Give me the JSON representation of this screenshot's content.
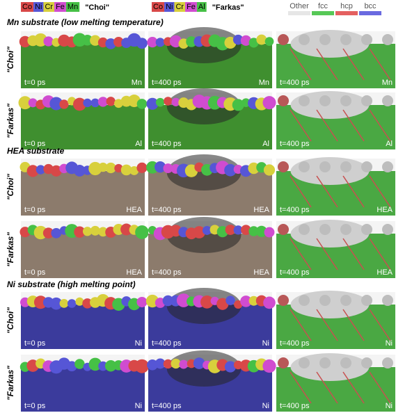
{
  "legend_choi": {
    "elements": [
      "Co",
      "Ni",
      "Cr",
      "Fe",
      "Mn"
    ],
    "label": "\"Choi\""
  },
  "legend_farkas": {
    "elements": [
      "Co",
      "Ni",
      "Cr",
      "Fe",
      "Al"
    ],
    "label": "\"Farkas\""
  },
  "legend_structure": [
    "Other",
    "fcc",
    "hcp",
    "bcc"
  ],
  "sections": [
    {
      "title": "Mn substrate (low melting temperature)",
      "rows": [
        {
          "label": "\"Choi\"",
          "panels": [
            {
              "time": "t=0 ps",
              "substrate": "Mn"
            },
            {
              "time": "t=400 ps",
              "substrate": "Mn"
            },
            {
              "time": "t=400 ps",
              "substrate": "Mn"
            }
          ]
        },
        {
          "label": "\"Farkas\"",
          "panels": [
            {
              "time": "t=0 ps",
              "substrate": "Al"
            },
            {
              "time": "t=400 ps",
              "substrate": "Al"
            },
            {
              "time": "t=400 ps",
              "substrate": "Al"
            }
          ]
        }
      ]
    },
    {
      "title": "HEA substrate",
      "rows": [
        {
          "label": "\"Choi\"",
          "panels": [
            {
              "time": "t=0 ps",
              "substrate": "HEA"
            },
            {
              "time": "t=400 ps",
              "substrate": "HEA"
            },
            {
              "time": "t=400 ps",
              "substrate": "HEA"
            }
          ]
        },
        {
          "label": "\"Farkas\"",
          "panels": [
            {
              "time": "t=0 ps",
              "substrate": "HEA"
            },
            {
              "time": "t=400 ps",
              "substrate": "HEA"
            },
            {
              "time": "t=400 ps",
              "substrate": "HEA"
            }
          ]
        }
      ]
    },
    {
      "title": "Ni substrate (high melting point)",
      "rows": [
        {
          "label": "\"Choi\"",
          "panels": [
            {
              "time": "t=0 ps",
              "substrate": "Ni"
            },
            {
              "time": "t=400 ps",
              "substrate": "Ni"
            },
            {
              "time": "t=400 ps",
              "substrate": "Ni"
            }
          ]
        },
        {
          "label": "\"Farkas\"",
          "panels": [
            {
              "time": "t=0 ps",
              "substrate": "Ni"
            },
            {
              "time": "t=400 ps",
              "substrate": "Ni"
            },
            {
              "time": "t=400 ps",
              "substrate": "Ni"
            }
          ]
        }
      ]
    }
  ]
}
